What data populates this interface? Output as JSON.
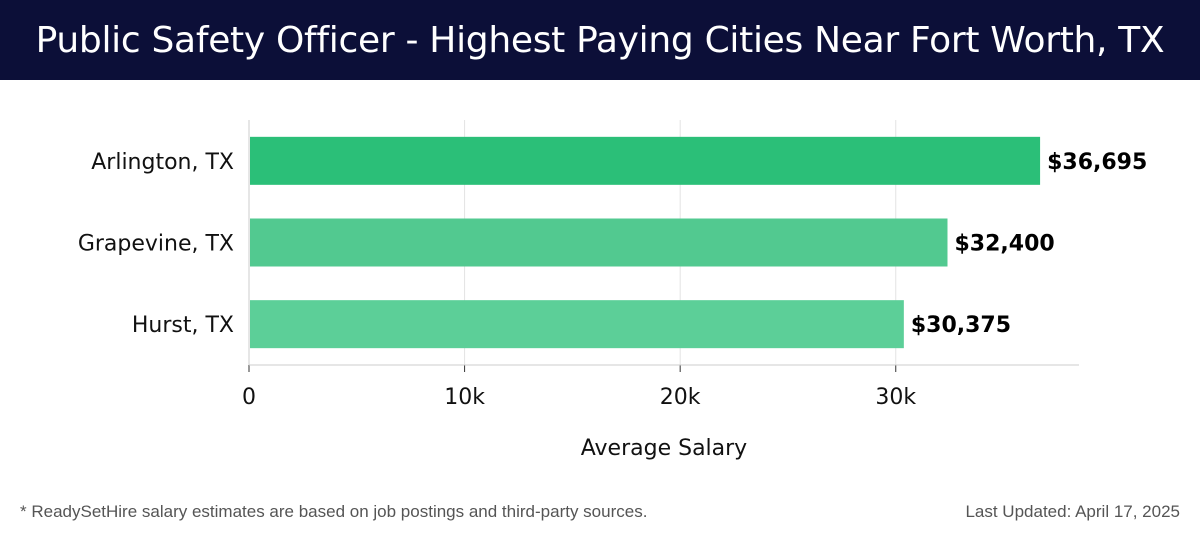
{
  "header": {
    "title": "Public Safety Officer - Highest Paying Cities Near Fort Worth, TX"
  },
  "chart_data": {
    "type": "bar",
    "orientation": "horizontal",
    "title": "Public Safety Officer - Highest Paying Cities Near Fort Worth, TX",
    "categories": [
      "Arlington, TX",
      "Grapevine, TX",
      "Hurst, TX"
    ],
    "values": [
      36695,
      32400,
      30375
    ],
    "value_labels": [
      "$36,695",
      "$32,400",
      "$30,375"
    ],
    "xlabel": "Average Salary",
    "ylabel": "",
    "xlim": [
      0,
      38500
    ],
    "xticks": [
      0,
      10000,
      20000,
      30000
    ],
    "xtick_labels": [
      "0",
      "10k",
      "20k",
      "30k"
    ],
    "grid": true,
    "colors": [
      "#2bbf78",
      "#52c990",
      "#5ccf98"
    ]
  },
  "footer": {
    "note": "* ReadySetHire salary estimates are based on job postings and third-party sources.",
    "updated": "Last Updated: April 17, 2025"
  }
}
